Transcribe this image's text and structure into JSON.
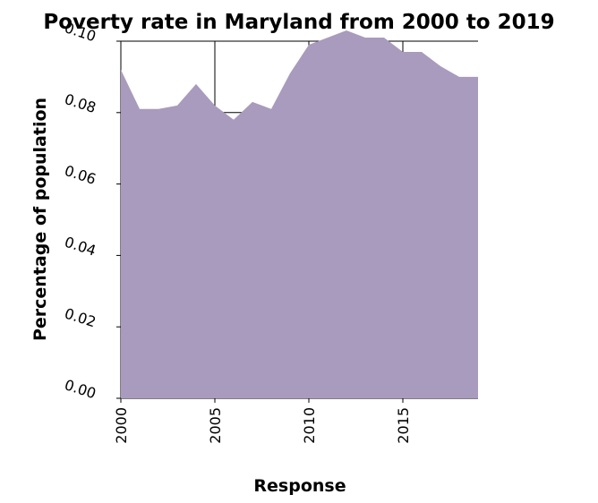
{
  "chart_data": {
    "type": "area",
    "title": "Poverty rate in Maryland from 2000 to 2019",
    "xlabel": "Response",
    "ylabel": "Percentage of population",
    "x": [
      2000,
      2001,
      2002,
      2003,
      2004,
      2005,
      2006,
      2007,
      2008,
      2009,
      2010,
      2011,
      2012,
      2013,
      2014,
      2015,
      2016,
      2017,
      2018,
      2019
    ],
    "values": [
      0.092,
      0.081,
      0.081,
      0.082,
      0.088,
      0.082,
      0.078,
      0.083,
      0.081,
      0.091,
      0.099,
      0.101,
      0.103,
      0.101,
      0.101,
      0.097,
      0.097,
      0.093,
      0.09,
      0.09
    ],
    "xlim": [
      2000,
      2019
    ],
    "ylim": [
      0,
      0.1
    ],
    "xticks": [
      "2000",
      "2005",
      "2010",
      "2015"
    ],
    "yticks": [
      "0.00",
      "0.02",
      "0.04",
      "0.06",
      "0.08",
      "0.10"
    ],
    "grid": true,
    "fill_color": "#a99bbd"
  }
}
